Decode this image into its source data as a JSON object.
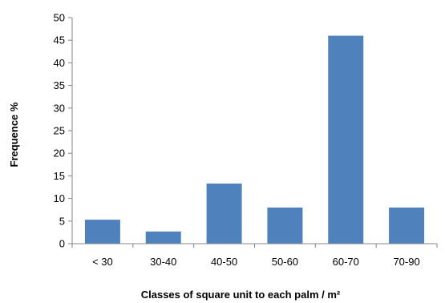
{
  "chart_data": {
    "type": "bar",
    "title": "",
    "xlabel": "Classes of square unit to each palm / m²",
    "ylabel": "Frequence %",
    "categories": [
      "< 30",
      "30-40",
      "40-50",
      "50-60",
      "60-70",
      "70-90"
    ],
    "values": [
      5.3,
      2.7,
      13.3,
      8.0,
      46.0,
      8.0
    ],
    "ylim": [
      0,
      50
    ],
    "yticks": [
      "0",
      "5",
      "10",
      "15",
      "20",
      "25",
      "30",
      "35",
      "40",
      "45",
      "50"
    ],
    "grid": false,
    "legend": "none",
    "bar_color": "#4F81BD",
    "axis_color": "#868686"
  }
}
